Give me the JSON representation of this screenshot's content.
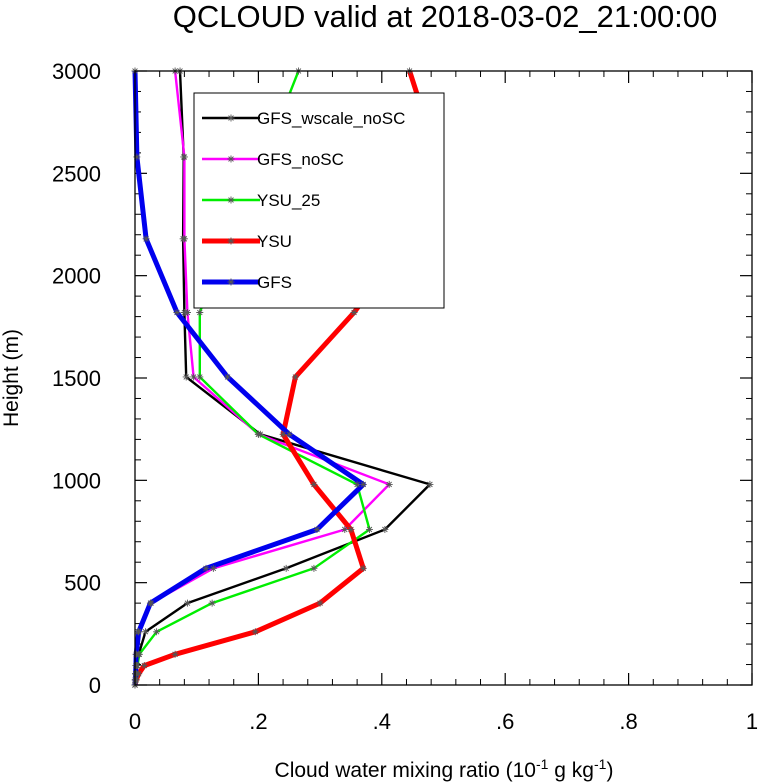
{
  "chart_data": {
    "type": "line",
    "title": "QCLOUD valid at 2018-03-02_21:00:00",
    "xlabel": {
      "prefix": "Cloud water mixing ratio (10",
      "exp1": "-1",
      "middle": " g kg",
      "exp2": "-1",
      "suffix": ")"
    },
    "ylabel": "Height (m)",
    "xlim": [
      0,
      1
    ],
    "ylim": [
      0,
      3000
    ],
    "x_ticks": [
      {
        "value": 0,
        "label": "0"
      },
      {
        "value": 0.2,
        "label": ".2"
      },
      {
        "value": 0.4,
        "label": ".4"
      },
      {
        "value": 0.6,
        "label": ".6"
      },
      {
        "value": 0.8,
        "label": ".8"
      },
      {
        "value": 1,
        "label": "1"
      }
    ],
    "y_ticks": [
      {
        "value": 0,
        "label": "0"
      },
      {
        "value": 500,
        "label": "500"
      },
      {
        "value": 1000,
        "label": "1000"
      },
      {
        "value": 1500,
        "label": "1500"
      },
      {
        "value": 2000,
        "label": "2000"
      },
      {
        "value": 2500,
        "label": "2500"
      },
      {
        "value": 3000,
        "label": "3000"
      }
    ],
    "legend_position": "top-left",
    "grid": false,
    "series": [
      {
        "name": "GFS_wscale_noSC",
        "color": "#000000",
        "thick": false,
        "points": [
          [
            0,
            0
          ],
          [
            0.001,
            25
          ],
          [
            0.002,
            55
          ],
          [
            0.003,
            95
          ],
          [
            0.006,
            150
          ],
          [
            0.017,
            260
          ],
          [
            0.085,
            400
          ],
          [
            0.245,
            570
          ],
          [
            0.405,
            760
          ],
          [
            0.478,
            980
          ],
          [
            0.203,
            1225
          ],
          [
            0.083,
            1505
          ],
          [
            0.08,
            1820
          ],
          [
            0.078,
            2180
          ],
          [
            0.079,
            2580
          ],
          [
            0.073,
            3000
          ]
        ]
      },
      {
        "name": "GFS_noSC",
        "color": "#ff00ff",
        "thick": false,
        "points": [
          [
            0,
            0
          ],
          [
            0.0005,
            25
          ],
          [
            0.001,
            55
          ],
          [
            0.0015,
            95
          ],
          [
            0.002,
            150
          ],
          [
            0.005,
            260
          ],
          [
            0.026,
            400
          ],
          [
            0.127,
            570
          ],
          [
            0.34,
            760
          ],
          [
            0.412,
            980
          ],
          [
            0.2,
            1225
          ],
          [
            0.095,
            1505
          ],
          [
            0.085,
            1820
          ],
          [
            0.08,
            2180
          ],
          [
            0.08,
            2580
          ],
          [
            0.065,
            3000
          ]
        ]
      },
      {
        "name": "YSU_25",
        "color": "#00ee00",
        "thick": false,
        "points": [
          [
            0,
            0
          ],
          [
            0.001,
            25
          ],
          [
            0.002,
            55
          ],
          [
            0.004,
            95
          ],
          [
            0.007,
            150
          ],
          [
            0.035,
            260
          ],
          [
            0.125,
            400
          ],
          [
            0.29,
            570
          ],
          [
            0.38,
            760
          ],
          [
            0.36,
            980
          ],
          [
            0.2,
            1225
          ],
          [
            0.105,
            1505
          ],
          [
            0.105,
            1820
          ],
          [
            0.15,
            2180
          ],
          [
            0.21,
            2580
          ],
          [
            0.265,
            3000
          ]
        ]
      },
      {
        "name": "YSU",
        "color": "#ff0000",
        "thick": true,
        "points": [
          [
            0,
            0
          ],
          [
            0.002,
            25
          ],
          [
            0.006,
            55
          ],
          [
            0.015,
            95
          ],
          [
            0.065,
            150
          ],
          [
            0.195,
            260
          ],
          [
            0.3,
            400
          ],
          [
            0.37,
            570
          ],
          [
            0.35,
            760
          ],
          [
            0.29,
            980
          ],
          [
            0.24,
            1225
          ],
          [
            0.26,
            1505
          ],
          [
            0.355,
            1820
          ],
          [
            0.445,
            2180
          ],
          [
            0.49,
            2580
          ],
          [
            0.445,
            3000
          ]
        ]
      },
      {
        "name": "GFS",
        "color": "#0000ee",
        "thick": true,
        "points": [
          [
            0,
            0
          ],
          [
            0.0005,
            25
          ],
          [
            0.001,
            55
          ],
          [
            0.0015,
            95
          ],
          [
            0.002,
            150
          ],
          [
            0.006,
            260
          ],
          [
            0.025,
            400
          ],
          [
            0.115,
            570
          ],
          [
            0.295,
            760
          ],
          [
            0.37,
            980
          ],
          [
            0.25,
            1225
          ],
          [
            0.15,
            1505
          ],
          [
            0.068,
            1820
          ],
          [
            0.018,
            2180
          ],
          [
            0.003,
            2580
          ],
          [
            0,
            3000
          ]
        ]
      }
    ]
  }
}
